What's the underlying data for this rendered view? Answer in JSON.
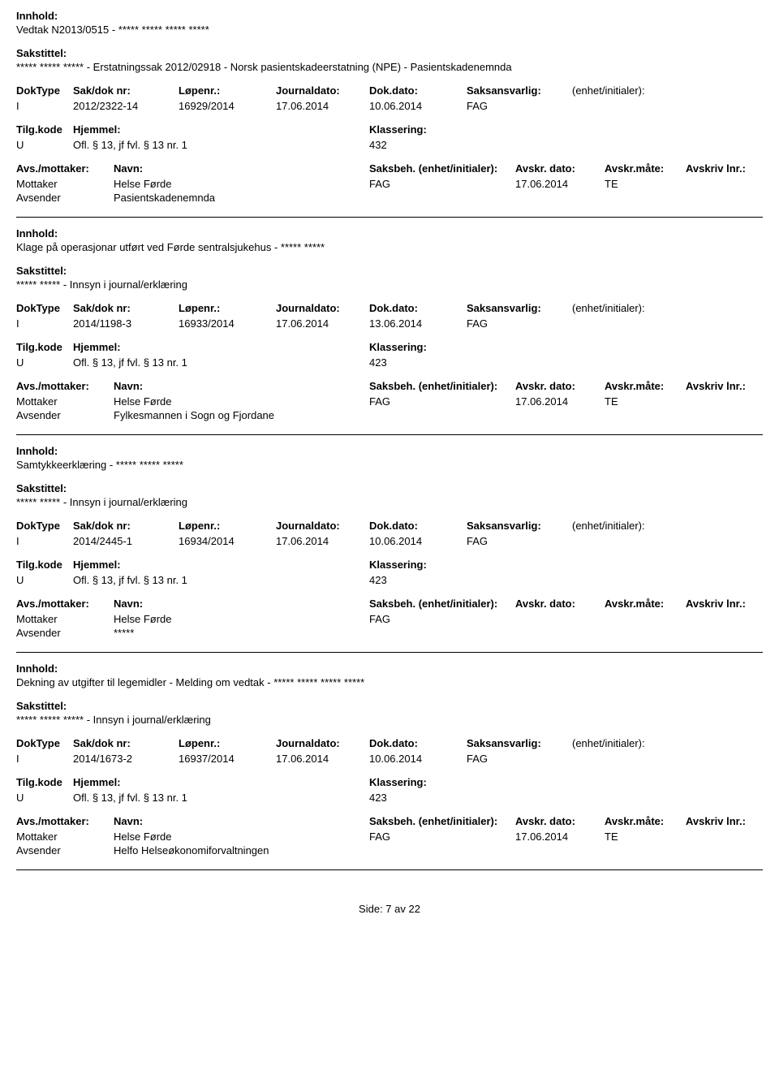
{
  "labels": {
    "innhold": "Innhold:",
    "sakstittel": "Sakstittel:",
    "doktype": "DokType",
    "sakdok": "Sak/dok nr:",
    "lopenr": "Løpenr.:",
    "journaldato": "Journaldato:",
    "dokdato": "Dok.dato:",
    "saksansvarlig": "Saksansvarlig:",
    "enhet": "(enhet/initialer):",
    "tilgkode": "Tilg.kode",
    "hjemmel": "Hjemmel:",
    "klassering": "Klassering:",
    "avsmottaker": "Avs./mottaker:",
    "navn": "Navn:",
    "saksbeh_enhet": "Saksbeh. (enhet/initialer):",
    "avskr_dato": "Avskr. dato:",
    "avskr_mate": "Avskr.måte:",
    "avskriv_lnr": "Avskriv lnr.:"
  },
  "records": [
    {
      "innhold": "Vedtak N2013/0515 - ***** ***** ***** *****",
      "sakstittel": "***** ***** ***** - Erstatningssak 2012/02918 - Norsk pasientskadeerstatning (NPE) - Pasientskadenemnda",
      "doktype": "I",
      "sakdok": "2012/2322-14",
      "lopenr": "16929/2014",
      "journaldato": "17.06.2014",
      "dokdato": "10.06.2014",
      "saksansvarlig": "FAG",
      "tilgkode": "U",
      "hjemmel": "Ofl. § 13, jf fvl. § 13 nr. 1",
      "klassering": "432",
      "parties": [
        {
          "role": "Mottaker",
          "name": "Helse Førde",
          "saksbeh": "FAG",
          "adato": "17.06.2014",
          "amate": "TE"
        },
        {
          "role": "Avsender",
          "name": "Pasientskadenemnda",
          "saksbeh": "",
          "adato": "",
          "amate": ""
        }
      ]
    },
    {
      "innhold": "Klage på operasjonar utført ved Førde sentralsjukehus - ***** *****",
      "sakstittel": "***** ***** - Innsyn i journal/erklæring",
      "doktype": "I",
      "sakdok": "2014/1198-3",
      "lopenr": "16933/2014",
      "journaldato": "17.06.2014",
      "dokdato": "13.06.2014",
      "saksansvarlig": "FAG",
      "tilgkode": "U",
      "hjemmel": "Ofl. § 13, jf fvl. § 13 nr. 1",
      "klassering": "423",
      "parties": [
        {
          "role": "Mottaker",
          "name": "Helse Førde",
          "saksbeh": "FAG",
          "adato": "17.06.2014",
          "amate": "TE"
        },
        {
          "role": "Avsender",
          "name": "Fylkesmannen i Sogn og Fjordane",
          "saksbeh": "",
          "adato": "",
          "amate": ""
        }
      ]
    },
    {
      "innhold": "Samtykkeerklæring - ***** ***** *****",
      "sakstittel": "***** ***** - Innsyn i journal/erklæring",
      "doktype": "I",
      "sakdok": "2014/2445-1",
      "lopenr": "16934/2014",
      "journaldato": "17.06.2014",
      "dokdato": "10.06.2014",
      "saksansvarlig": "FAG",
      "tilgkode": "U",
      "hjemmel": "Ofl. § 13, jf fvl. § 13 nr. 1",
      "klassering": "423",
      "parties": [
        {
          "role": "Mottaker",
          "name": "Helse Førde",
          "saksbeh": "FAG",
          "adato": "",
          "amate": ""
        },
        {
          "role": "Avsender",
          "name": "*****",
          "saksbeh": "",
          "adato": "",
          "amate": ""
        }
      ]
    },
    {
      "innhold": "Dekning av utgifter til legemidler - Melding om vedtak - ***** ***** ***** *****",
      "sakstittel": "***** ***** ***** - Innsyn i journal/erklæring",
      "doktype": "I",
      "sakdok": "2014/1673-2",
      "lopenr": "16937/2014",
      "journaldato": "17.06.2014",
      "dokdato": "10.06.2014",
      "saksansvarlig": "FAG",
      "tilgkode": "U",
      "hjemmel": "Ofl. § 13, jf fvl. § 13 nr. 1",
      "klassering": "423",
      "parties": [
        {
          "role": "Mottaker",
          "name": "Helse Førde",
          "saksbeh": "FAG",
          "adato": "17.06.2014",
          "amate": "TE"
        },
        {
          "role": "Avsender",
          "name": "Helfo Helseøkonomiforvaltningen",
          "saksbeh": "",
          "adato": "",
          "amate": ""
        }
      ]
    }
  ],
  "footer": "Side: 7 av 22"
}
